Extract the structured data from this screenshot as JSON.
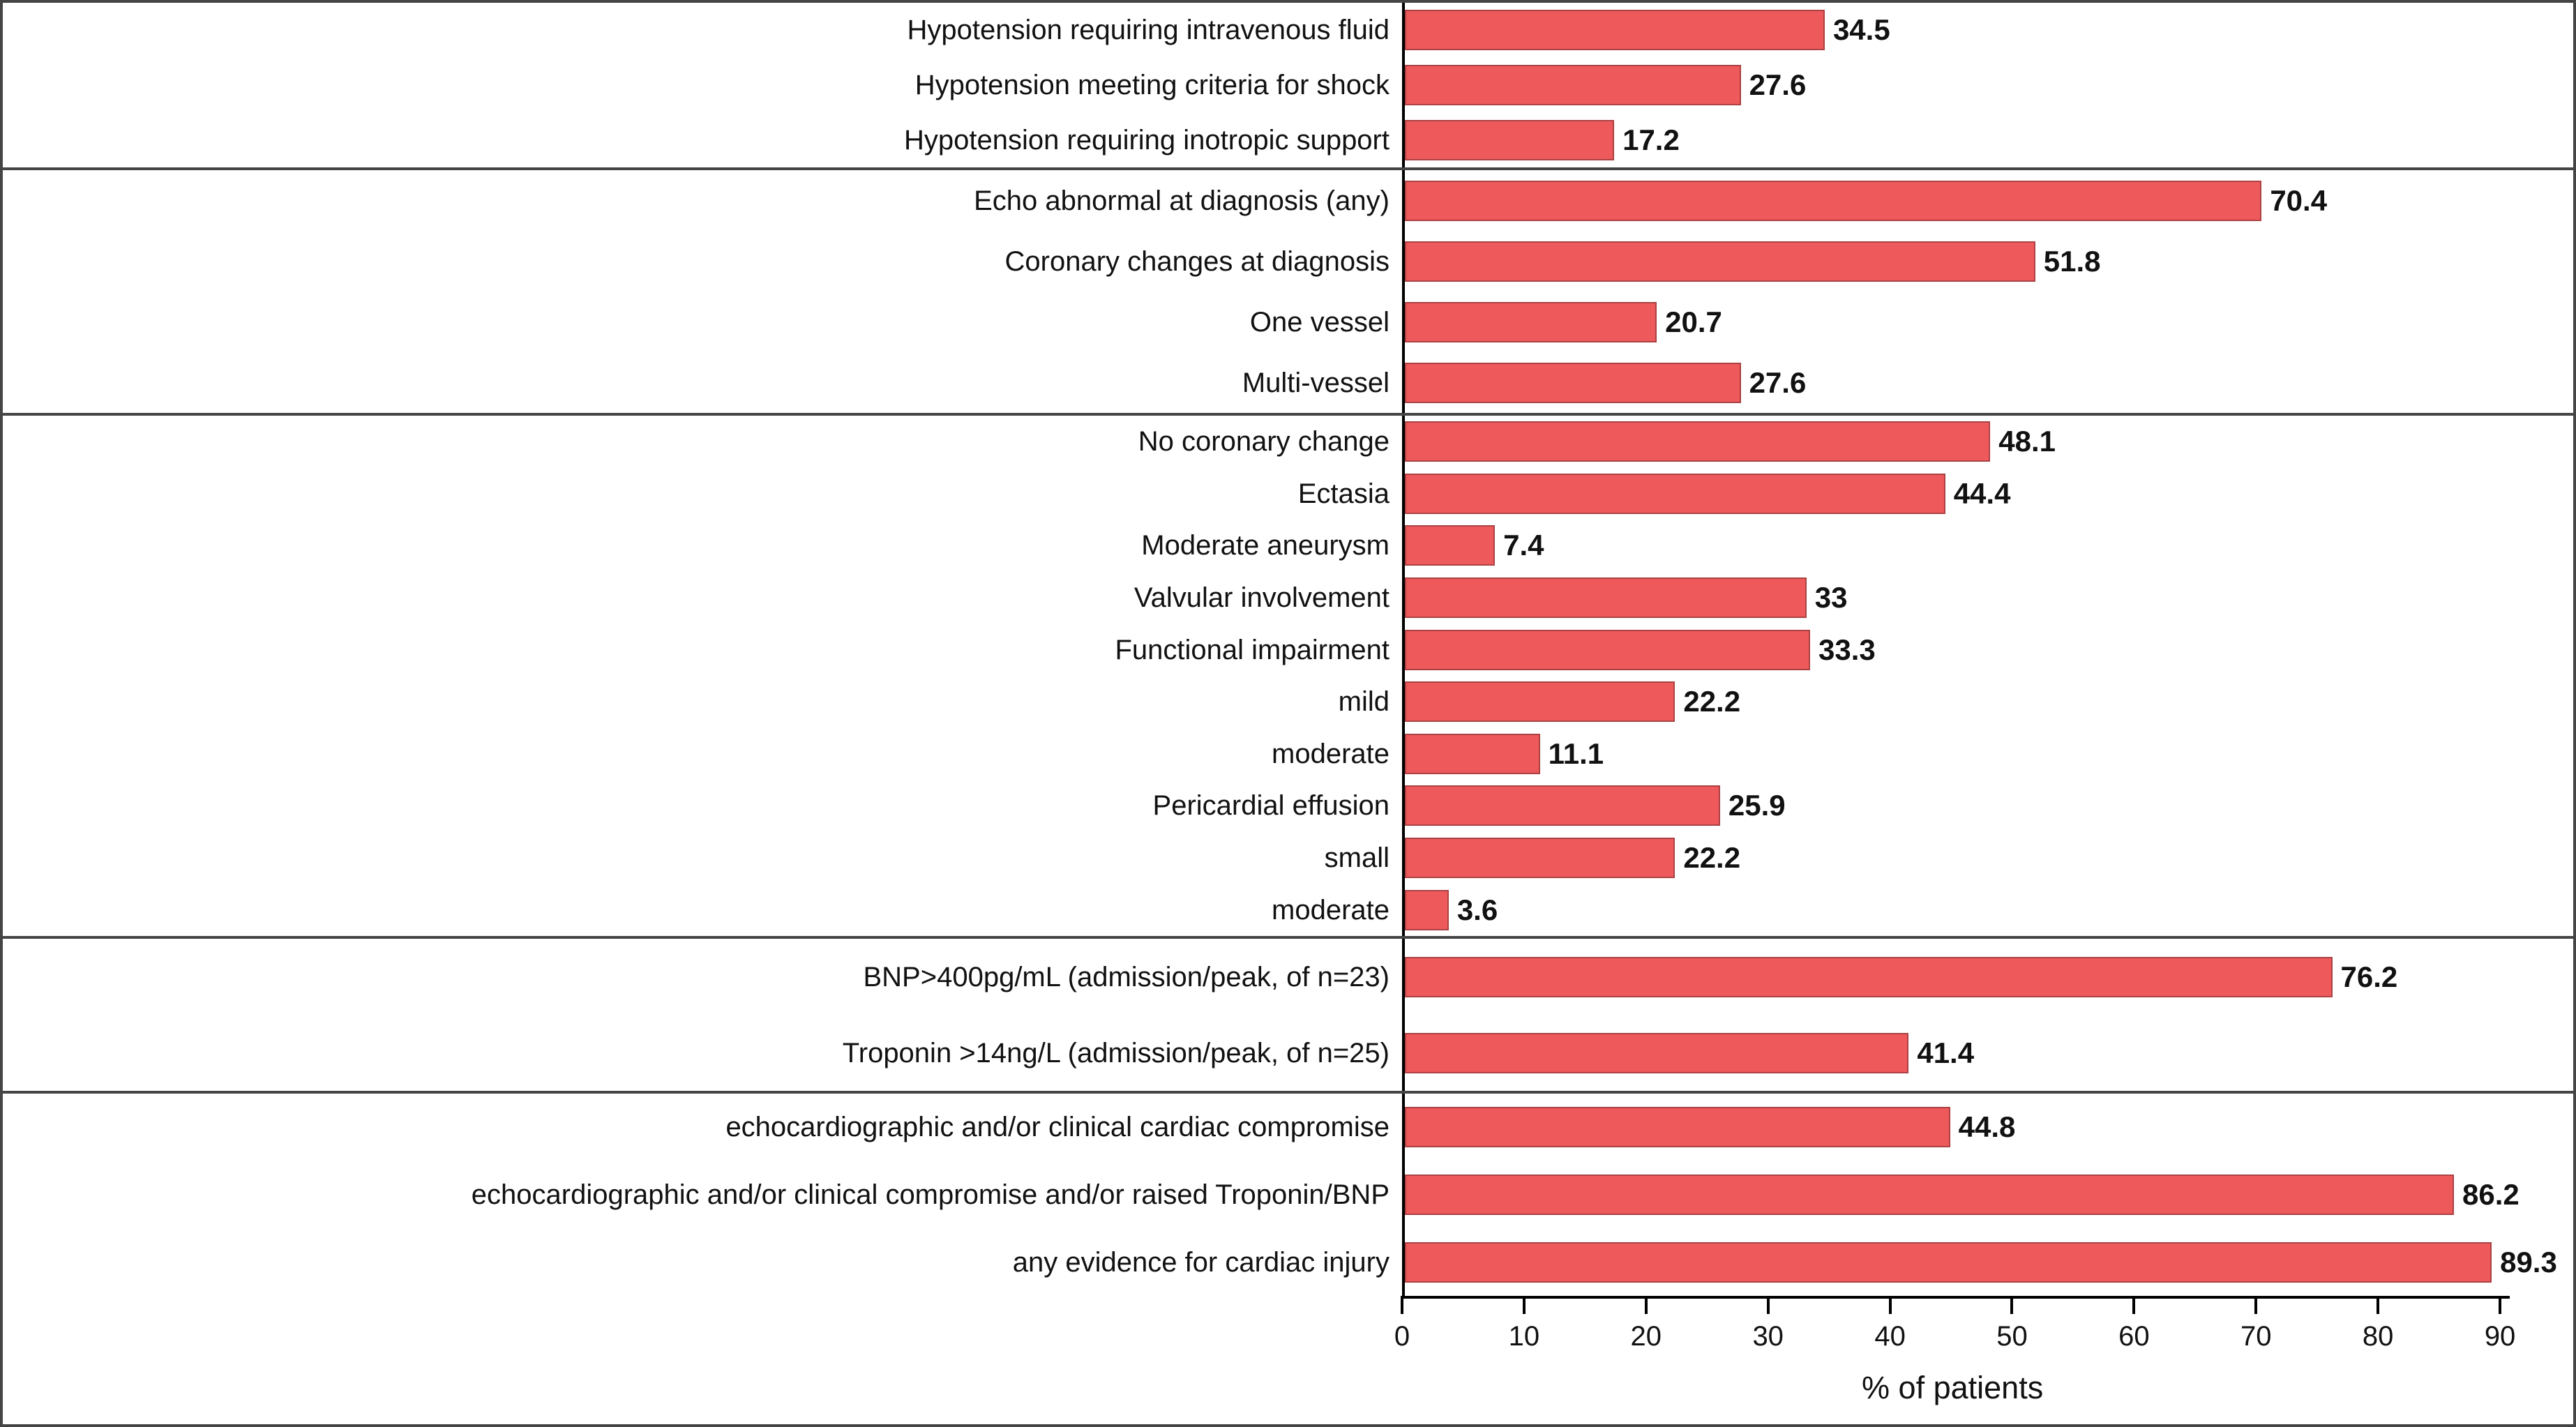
{
  "chart_data": {
    "type": "bar",
    "orientation": "horizontal",
    "title": "",
    "xlabel": "% of patients",
    "ylabel": "",
    "xlim": [
      0,
      96
    ],
    "xticks": [
      0,
      10,
      20,
      30,
      40,
      50,
      60,
      70,
      80,
      90
    ],
    "grid": false,
    "legend": false,
    "bar_color": "#EE5A5C",
    "frame_color": "#454545",
    "axis_color": "#000000",
    "groups": [
      {
        "items": [
          {
            "label": "Hypotension requiring intravenous fluid",
            "value": 34.5
          },
          {
            "label": "Hypotension meeting criteria for shock",
            "value": 27.6
          },
          {
            "label": "Hypotension requiring inotropic support",
            "value": 17.2
          }
        ]
      },
      {
        "items": [
          {
            "label": "Echo abnormal at diagnosis (any)",
            "value": 70.4
          },
          {
            "label": "Coronary changes at diagnosis",
            "value": 51.8
          },
          {
            "label": "One vessel",
            "value": 20.7
          },
          {
            "label": "Multi-vessel",
            "value": 27.6
          }
        ]
      },
      {
        "items": [
          {
            "label": "No coronary change",
            "value": 48.1
          },
          {
            "label": "Ectasia",
            "value": 44.4
          },
          {
            "label": "Moderate aneurysm",
            "value": 7.4
          },
          {
            "label": "Valvular involvement",
            "value": 33
          },
          {
            "label": "Functional impairment",
            "value": 33.3
          },
          {
            "label": "mild",
            "value": 22.2
          },
          {
            "label": "moderate",
            "value": 11.1
          },
          {
            "label": "Pericardial effusion",
            "value": 25.9
          },
          {
            "label": "small",
            "value": 22.2
          },
          {
            "label": "moderate",
            "value": 3.6
          }
        ]
      },
      {
        "items": [
          {
            "label": "BNP>400pg/mL (admission/peak, of n=23)",
            "value": 76.2
          },
          {
            "label": "Troponin >14ng/L (admission/peak, of n=25)",
            "value": 41.4
          }
        ]
      },
      {
        "items": [
          {
            "label": "echocardiographic and/or clinical cardiac compromise",
            "value": 44.8
          },
          {
            "label": "echocardiographic and/or clinical compromise and/or raised Troponin/BNP",
            "value": 86.2
          },
          {
            "label": "any evidence for cardiac injury",
            "value": 89.3
          }
        ]
      }
    ]
  }
}
